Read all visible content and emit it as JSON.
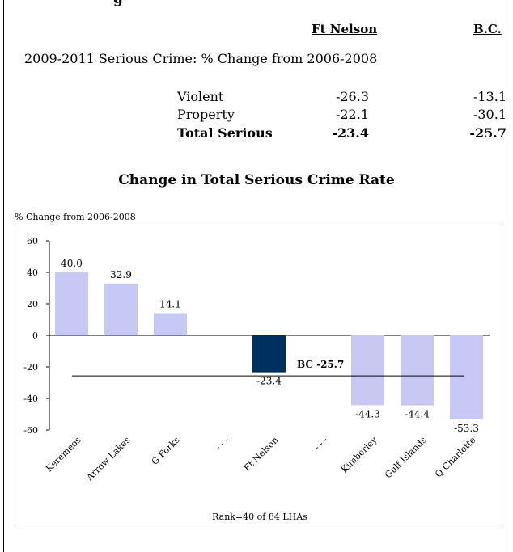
{
  "header": {
    "partial_heading": "g",
    "col_ft_nelson": "Ft Nelson",
    "col_bc": "B.C."
  },
  "summary": {
    "title": "2009-2011 Serious Crime: % Change from 2006-2008",
    "rows": [
      {
        "label": "Violent",
        "ft_nelson": "-26.3",
        "bc": "-13.1"
      },
      {
        "label": "Property",
        "ft_nelson": "-22.1",
        "bc": "-30.1"
      },
      {
        "label": "Total Serious",
        "ft_nelson": "-23.4",
        "bc": "-25.7"
      }
    ]
  },
  "colors": {
    "bar": "#c8c8f5",
    "highlight": "#00305f"
  },
  "chart_data": {
    "type": "bar",
    "title": "Change in Total Serious Crime Rate",
    "ylabel": "% Change from 2006-2008",
    "categories": [
      "Keremeos",
      "Arrow Lakes",
      "G Forks",
      "- - -",
      "Ft Nelson",
      "- - -",
      "Kimberley",
      "Gulf Islands",
      "Q Charlotte"
    ],
    "values": [
      40.0,
      32.9,
      14.1,
      null,
      -23.4,
      null,
      -44.3,
      -44.4,
      -53.3
    ],
    "data_labels": [
      "40.0",
      "32.9",
      "14.1",
      "",
      "-23.4",
      "",
      "-44.3",
      "-44.4",
      "-53.3"
    ],
    "highlight_category": "Ft Nelson",
    "reference_line": {
      "value": -25.7,
      "label": "BC -25.7"
    },
    "ylim": [
      -60,
      60
    ],
    "yticks": [
      "60",
      "40",
      "20",
      "0",
      "-20",
      "-40",
      "-60"
    ],
    "ytick_values": [
      60,
      40,
      20,
      0,
      -20,
      -40,
      -60
    ],
    "footnote": "Rank=40 of 84 LHAs",
    "grid": false,
    "legend": "none"
  }
}
